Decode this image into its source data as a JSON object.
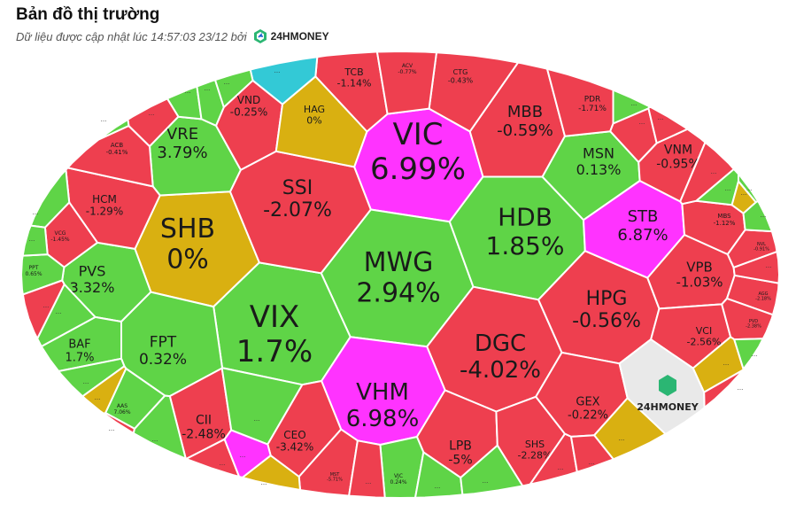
{
  "header": {
    "title": "Bản đồ thị trường",
    "subtitle": "Dữ liệu được cập nhật lúc 14:57:03 23/12 bởi",
    "brand": "24HMONEY"
  },
  "colors": {
    "up": "#5fd447",
    "down": "#ee3f4f",
    "flat": "#d9b011",
    "ceiling": "#ff33ff",
    "floor": "#33c9d6",
    "logo_tile": "#e9e9e9"
  },
  "chart_data": {
    "type": "heatmap",
    "title": "Bản đồ thị trường",
    "cells": [
      {
        "ticker": "VIC",
        "change": "6.99%",
        "status": "ceiling"
      },
      {
        "ticker": "MWG",
        "change": "2.94%",
        "status": "up"
      },
      {
        "ticker": "SHB",
        "change": "0%",
        "status": "flat"
      },
      {
        "ticker": "VIX",
        "change": "1.7%",
        "status": "up"
      },
      {
        "ticker": "SSI",
        "change": "-2.07%",
        "status": "down"
      },
      {
        "ticker": "HDB",
        "change": "1.85%",
        "status": "up"
      },
      {
        "ticker": "DGC",
        "change": "-4.02%",
        "status": "down"
      },
      {
        "ticker": "VHM",
        "change": "6.98%",
        "status": "ceiling"
      },
      {
        "ticker": "HPG",
        "change": "-0.56%",
        "status": "down"
      },
      {
        "ticker": "STB",
        "change": "6.87%",
        "status": "ceiling"
      },
      {
        "ticker": "MBB",
        "change": "-0.59%",
        "status": "down"
      },
      {
        "ticker": "VRE",
        "change": "3.79%",
        "status": "up"
      },
      {
        "ticker": "PVS",
        "change": "3.32%",
        "status": "up"
      },
      {
        "ticker": "FPT",
        "change": "0.32%",
        "status": "up"
      },
      {
        "ticker": "VND",
        "change": "-0.25%",
        "status": "down"
      },
      {
        "ticker": "TCB",
        "change": "-1.14%",
        "status": "down"
      },
      {
        "ticker": "HAG",
        "change": "0%",
        "status": "flat"
      },
      {
        "ticker": "MSN",
        "change": "0.13%",
        "status": "up"
      },
      {
        "ticker": "VNM",
        "change": "-0.95%",
        "status": "down"
      },
      {
        "ticker": "VPB",
        "change": "-1.03%",
        "status": "down"
      },
      {
        "ticker": "HCM",
        "change": "-1.29%",
        "status": "down"
      },
      {
        "ticker": "BAF",
        "change": "1.7%",
        "status": "up"
      },
      {
        "ticker": "CII",
        "change": "-2.48%",
        "status": "down"
      },
      {
        "ticker": "CEO",
        "change": "-3.42%",
        "status": "down"
      },
      {
        "ticker": "LPB",
        "change": "-5%",
        "status": "down"
      },
      {
        "ticker": "SHS",
        "change": "-2.28%",
        "status": "down"
      },
      {
        "ticker": "GEX",
        "change": "-0.22%",
        "status": "down"
      },
      {
        "ticker": "VCI",
        "change": "-2.56%",
        "status": "down"
      },
      {
        "ticker": "PDR",
        "change": "-1.71%",
        "status": "down"
      },
      {
        "ticker": "CTG",
        "change": "-0.43%",
        "status": "down"
      },
      {
        "ticker": "ACB",
        "change": "-0.41%",
        "status": "down"
      },
      {
        "ticker": "ACV",
        "change": "-0.77%",
        "status": "down"
      },
      {
        "ticker": "MBS",
        "change": "-1.12%",
        "status": "down"
      },
      {
        "ticker": "VCG",
        "change": "-1.45%",
        "status": "down"
      },
      {
        "ticker": "PPT",
        "change": "0.65%",
        "status": "up"
      },
      {
        "ticker": "AAS",
        "change": "7.06%",
        "status": "up"
      },
      {
        "ticker": "MST",
        "change": "-5.71%",
        "status": "down"
      },
      {
        "ticker": "VJC",
        "change": "0.24%",
        "status": "up"
      },
      {
        "ticker": "NVL",
        "change": "-0.91%",
        "status": "down"
      },
      {
        "ticker": "AGG",
        "change": "-2.18%",
        "status": "down"
      },
      {
        "ticker": "PVD",
        "change": "-2.38%",
        "status": "down"
      }
    ],
    "small_cells": [
      {
        "status": "up"
      },
      {
        "status": "up"
      },
      {
        "status": "down"
      },
      {
        "status": "up"
      },
      {
        "status": "floor"
      },
      {
        "status": "up"
      },
      {
        "status": "up"
      },
      {
        "status": "up"
      },
      {
        "status": "down"
      },
      {
        "status": "up"
      },
      {
        "status": "up"
      },
      {
        "status": "down"
      },
      {
        "status": "up"
      },
      {
        "status": "flat"
      },
      {
        "status": "down"
      },
      {
        "status": "up"
      },
      {
        "status": "up"
      },
      {
        "status": "flat"
      },
      {
        "status": "down"
      },
      {
        "status": "up"
      },
      {
        "status": "down"
      },
      {
        "status": "ceiling"
      },
      {
        "status": "up"
      },
      {
        "status": "flat"
      },
      {
        "status": "down"
      },
      {
        "status": "up"
      },
      {
        "status": "up"
      },
      {
        "status": "down"
      },
      {
        "status": "down"
      },
      {
        "status": "flat"
      },
      {
        "status": "up"
      },
      {
        "status": "down"
      },
      {
        "status": "down"
      },
      {
        "status": "flat"
      },
      {
        "status": "up"
      },
      {
        "status": "down"
      }
    ],
    "more_marker": "..."
  }
}
